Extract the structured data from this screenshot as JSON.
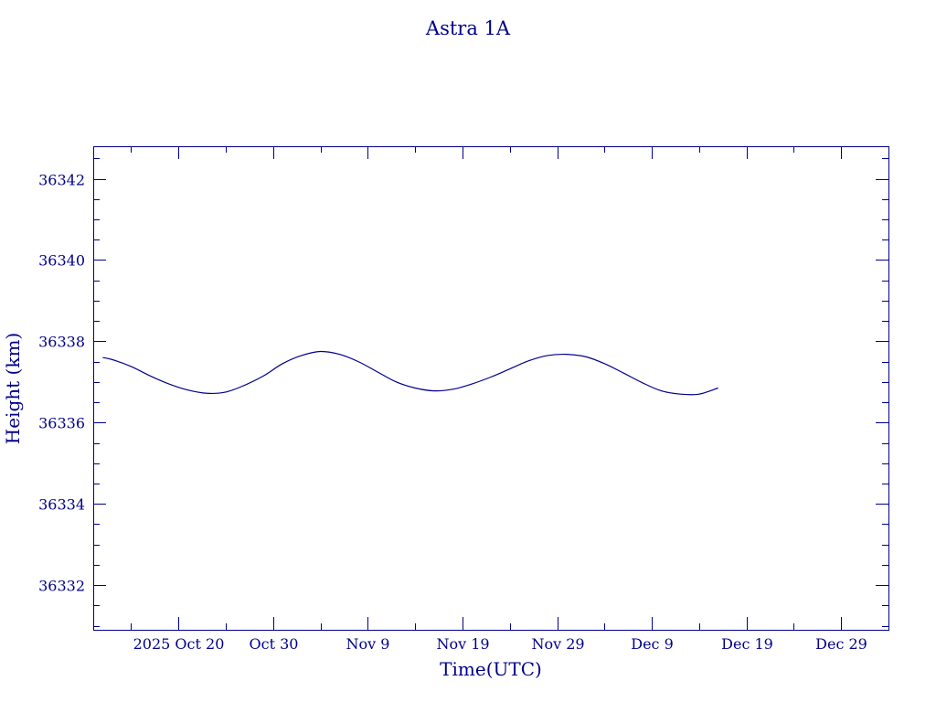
{
  "chart_data": {
    "type": "line",
    "title": "Astra 1A",
    "xlabel": "Time(UTC)",
    "ylabel": "Height (km)",
    "x_type": "date",
    "xlim": [
      "2025-10-11",
      "2026-01-03"
    ],
    "ylim": [
      36330.9,
      36342.8
    ],
    "x_ticks": [
      {
        "date": "2025-10-20",
        "label": "2025 Oct 20"
      },
      {
        "date": "2025-10-30",
        "label": "Oct 30"
      },
      {
        "date": "2025-11-09",
        "label": "Nov  9"
      },
      {
        "date": "2025-11-19",
        "label": "Nov 19"
      },
      {
        "date": "2025-11-29",
        "label": "Nov 29"
      },
      {
        "date": "2025-12-09",
        "label": "Dec  9"
      },
      {
        "date": "2025-12-19",
        "label": "Dec 19"
      },
      {
        "date": "2025-12-29",
        "label": "Dec 29"
      }
    ],
    "x_minor_step_days": 5,
    "y_ticks": [
      36332,
      36334,
      36336,
      36338,
      36340,
      36342
    ],
    "y_minor_step": 0.5,
    "grid": false,
    "colors": {
      "axes": "#00008b",
      "line": "#00008b",
      "background": "#ffffff"
    },
    "series": [
      {
        "points": [
          {
            "x": "2025-10-12",
            "y": 36337.6
          },
          {
            "x": "2025-10-13",
            "y": 36337.55
          },
          {
            "x": "2025-10-15",
            "y": 36337.38
          },
          {
            "x": "2025-10-17",
            "y": 36337.15
          },
          {
            "x": "2025-10-19",
            "y": 36336.95
          },
          {
            "x": "2025-10-21",
            "y": 36336.8
          },
          {
            "x": "2025-10-23",
            "y": 36336.72
          },
          {
            "x": "2025-10-25",
            "y": 36336.75
          },
          {
            "x": "2025-10-27",
            "y": 36336.92
          },
          {
            "x": "2025-10-29",
            "y": 36337.15
          },
          {
            "x": "2025-10-31",
            "y": 36337.45
          },
          {
            "x": "2025-11-02",
            "y": 36337.65
          },
          {
            "x": "2025-11-04",
            "y": 36337.75
          },
          {
            "x": "2025-11-06",
            "y": 36337.68
          },
          {
            "x": "2025-11-08",
            "y": 36337.5
          },
          {
            "x": "2025-11-10",
            "y": 36337.25
          },
          {
            "x": "2025-11-12",
            "y": 36337.0
          },
          {
            "x": "2025-11-14",
            "y": 36336.85
          },
          {
            "x": "2025-11-16",
            "y": 36336.78
          },
          {
            "x": "2025-11-18",
            "y": 36336.82
          },
          {
            "x": "2025-11-20",
            "y": 36336.95
          },
          {
            "x": "2025-11-22",
            "y": 36337.12
          },
          {
            "x": "2025-11-24",
            "y": 36337.32
          },
          {
            "x": "2025-11-26",
            "y": 36337.52
          },
          {
            "x": "2025-11-28",
            "y": 36337.65
          },
          {
            "x": "2025-11-30",
            "y": 36337.68
          },
          {
            "x": "2025-12-02",
            "y": 36337.62
          },
          {
            "x": "2025-12-04",
            "y": 36337.45
          },
          {
            "x": "2025-12-06",
            "y": 36337.22
          },
          {
            "x": "2025-12-08",
            "y": 36336.98
          },
          {
            "x": "2025-12-10",
            "y": 36336.78
          },
          {
            "x": "2025-12-12",
            "y": 36336.7
          },
          {
            "x": "2025-12-14",
            "y": 36336.7
          },
          {
            "x": "2025-12-16",
            "y": 36336.85
          }
        ]
      }
    ]
  }
}
